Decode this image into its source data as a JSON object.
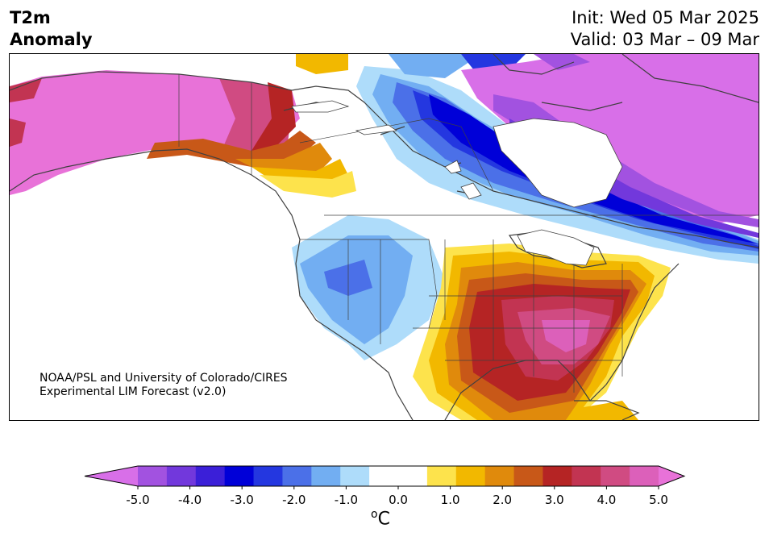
{
  "title": {
    "left_line1": "T2m",
    "left_line2": "Anomaly",
    "right_line1": "Init: Wed 05 Mar 2025",
    "right_line2": "Valid: 03 Mar – 09 Mar"
  },
  "credit": {
    "line1": "NOAA/PSL and University of Colorado/CIRES",
    "line2": "Experimental LIM Forecast (v2.0)"
  },
  "colorbar": {
    "ticks": [
      "-5.0",
      "-4.0",
      "-3.0",
      "-2.0",
      "-1.0",
      "0.0",
      "1.0",
      "2.0",
      "3.0",
      "4.0",
      "5.0"
    ],
    "unit_sup": "o",
    "unit": "C",
    "colors": [
      "#d86fe8",
      "#a252e0",
      "#7238dc",
      "#3b1fd8",
      "#0000d8",
      "#2437e0",
      "#4b70e8",
      "#72aef2",
      "#aedcfa",
      "#ffffff",
      "#ffffff",
      "#fde34c",
      "#f2b800",
      "#e08a0c",
      "#c85818",
      "#b52424",
      "#c23452",
      "#d04b82",
      "#dc60ba",
      "#e872d8"
    ]
  },
  "colors": {
    "ocean": "#ffffff",
    "coast": "#404040"
  }
}
